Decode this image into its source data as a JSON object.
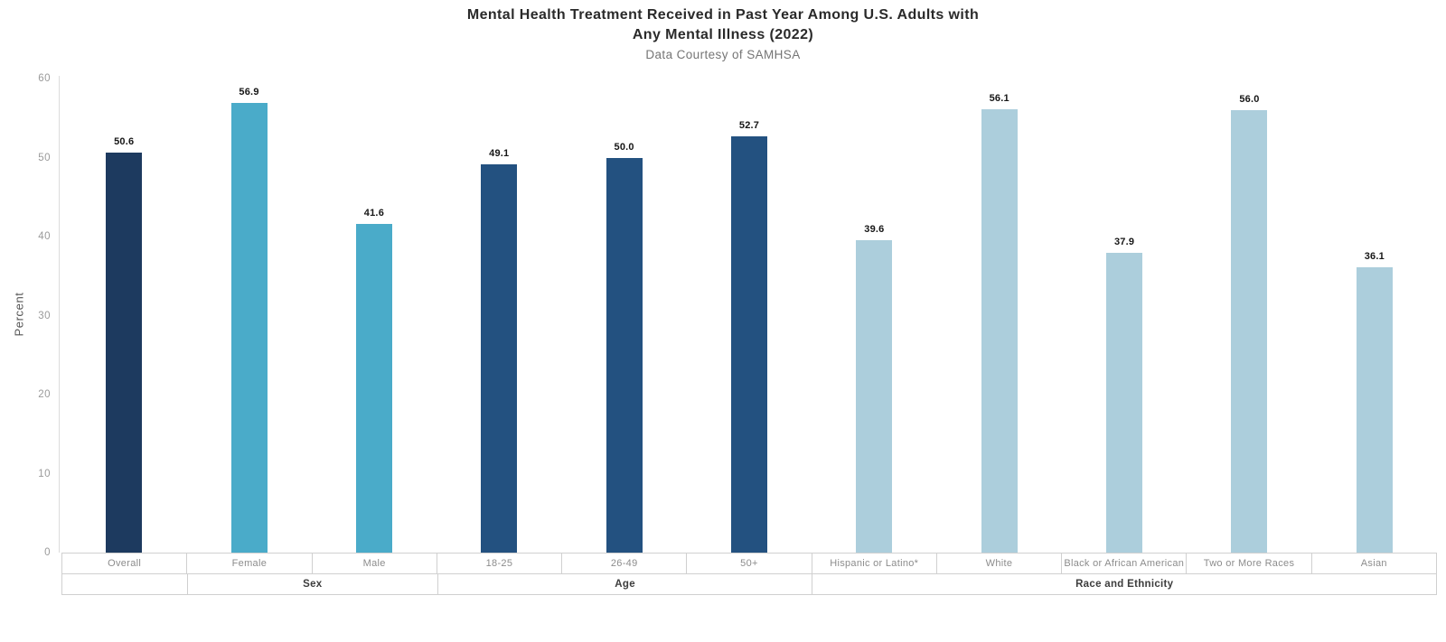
{
  "header": {
    "title_line1": "Mental Health Treatment Received in Past Year Among U.S. Adults with",
    "title_line2": "Any Mental Illness (2022)",
    "subtitle": "Data Courtesy of SAMHSA"
  },
  "chart_data": {
    "type": "bar",
    "title": "Mental Health Treatment Received in Past Year Among U.S. Adults with Any Mental Illness (2022)",
    "subtitle": "Data Courtesy of SAMHSA",
    "xlabel": "",
    "ylabel": "Percent",
    "ylim": [
      0,
      60
    ],
    "yticks": [
      0,
      10,
      20,
      30,
      40,
      50,
      60
    ],
    "grid": false,
    "legend": "none",
    "value_labels_shown": true,
    "categories": [
      "Overall",
      "Female",
      "Male",
      "18-25",
      "26-49",
      "50+",
      "Hispanic or Latino*",
      "White",
      "Black or African American",
      "Two or More Races",
      "Asian"
    ],
    "values": [
      50.6,
      56.9,
      41.6,
      49.1,
      50.0,
      52.7,
      39.6,
      56.1,
      37.9,
      56.0,
      36.1
    ],
    "value_labels_text": [
      "50.6",
      "56.9",
      "41.6",
      "49.1",
      "50.0",
      "52.7",
      "39.6",
      "56.1",
      "37.9",
      "56.0",
      "36.1"
    ],
    "bar_groups": [
      {
        "label": "",
        "span": 1,
        "color": "#1d3a5f"
      },
      {
        "label": "Sex",
        "span": 2,
        "color": "#4aabc9"
      },
      {
        "label": "Age",
        "span": 3,
        "color": "#235180"
      },
      {
        "label": "Race and Ethnicity",
        "span": 5,
        "color": "#accedc"
      }
    ],
    "colors": {
      "overall_bar": "#1d3a5f",
      "sex_bars": "#4aabc9",
      "age_bars": "#235180",
      "race_bars": "#accedc",
      "axis_line": "#dcdcdc",
      "tick_text": "#9a9a9a",
      "table_border": "#d0d0d0",
      "category_text": "#8c8c8c",
      "group_text": "#3d3d3d",
      "value_text": "#161616"
    }
  }
}
